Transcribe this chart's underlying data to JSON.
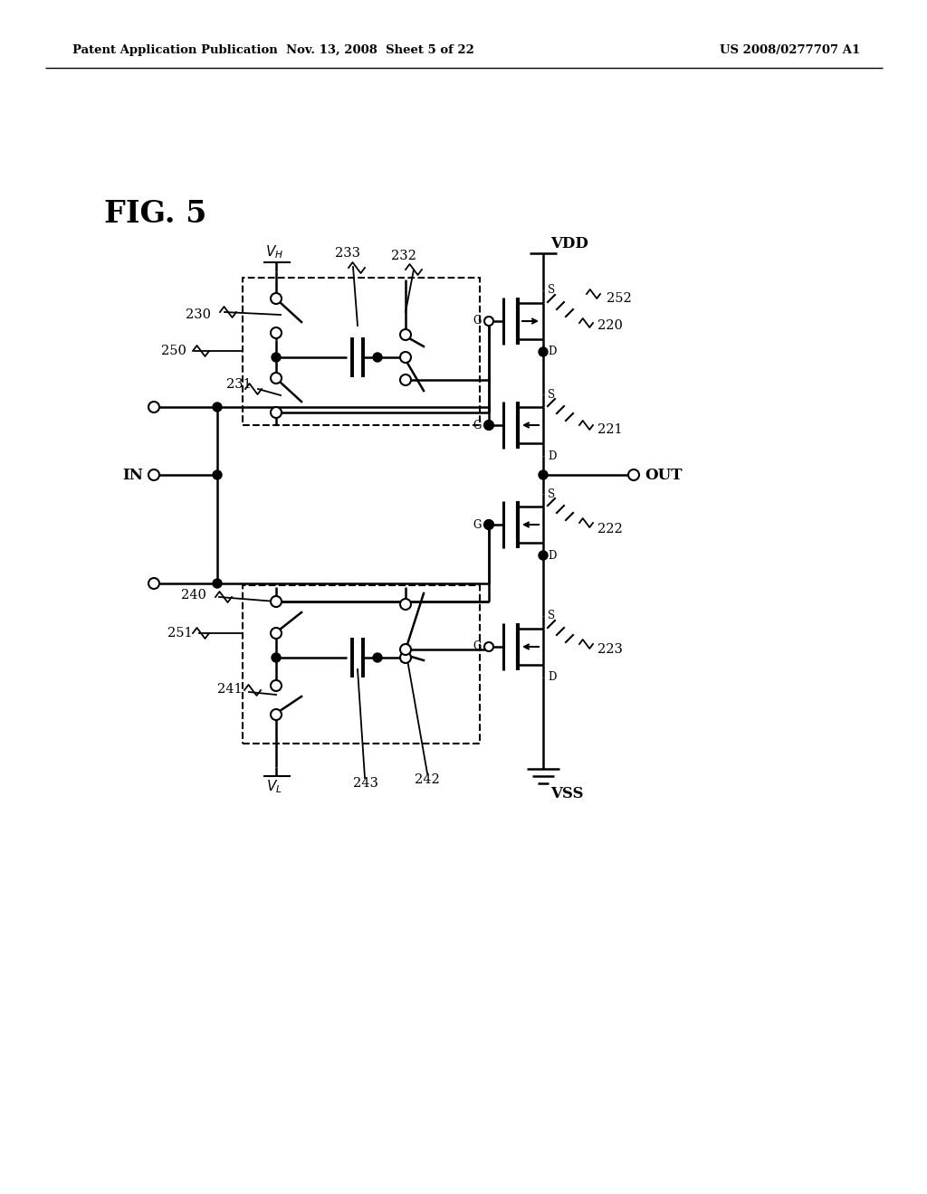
{
  "header_left": "Patent Application Publication",
  "header_center": "Nov. 13, 2008  Sheet 5 of 22",
  "header_right": "US 2008/0277707 A1",
  "fig_label": "FIG. 5",
  "background": "#ffffff"
}
